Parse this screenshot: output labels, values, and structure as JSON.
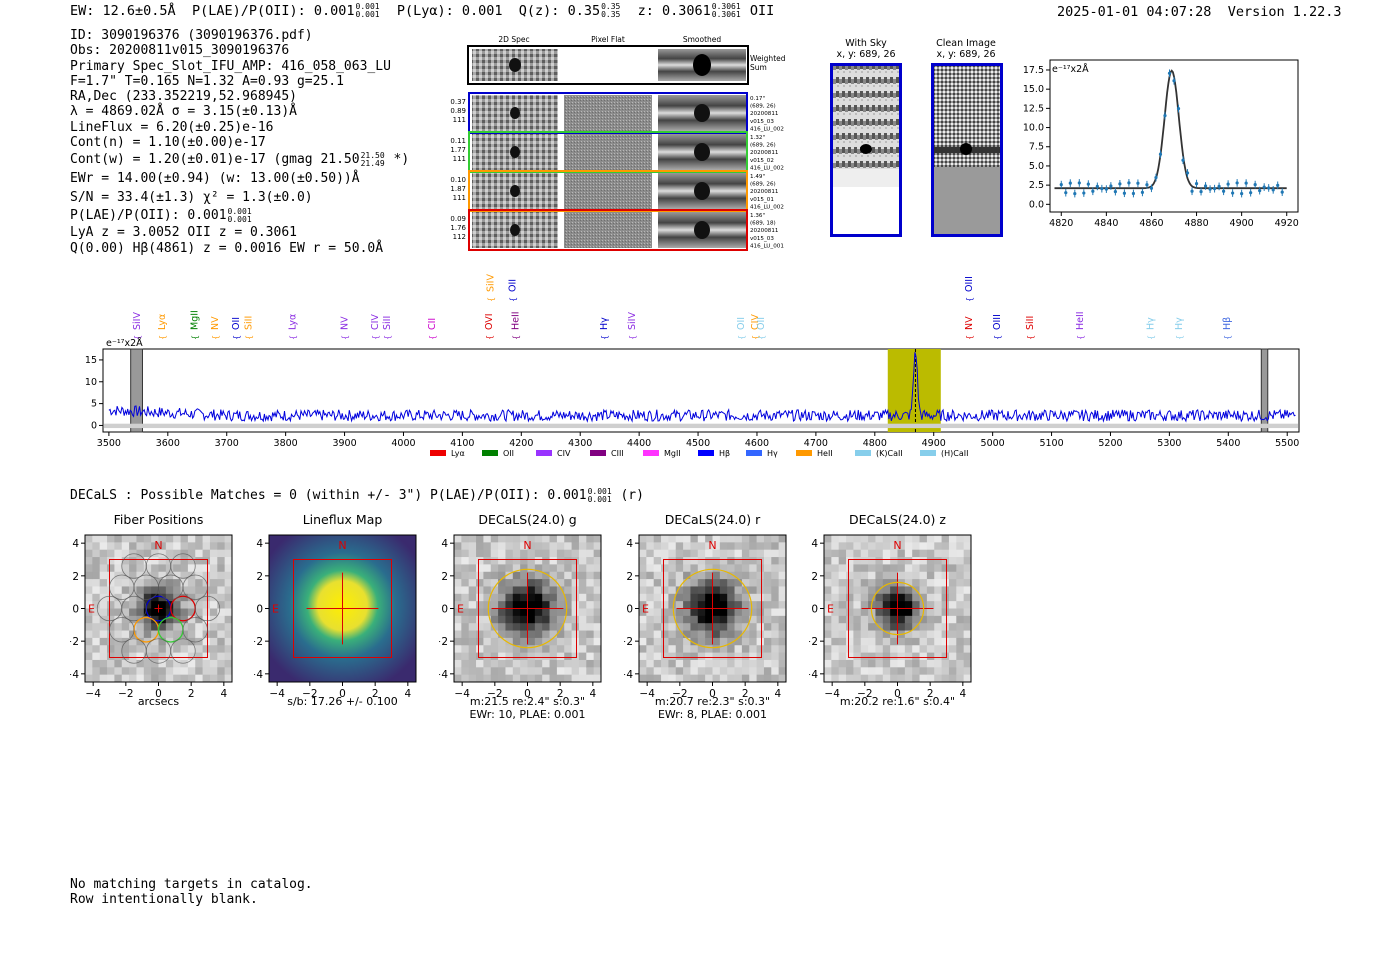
{
  "header": {
    "ew_label": "EW: 12.6±0.5Å",
    "plae_label": "P(LAE)/P(OII): 0.001",
    "plae_up": "0.001",
    "plae_lo": "0.001",
    "plya_label": "P(Lyα): 0.001",
    "qz_label": "Q(z): 0.35",
    "qz_up": "0.35",
    "qz_lo": "0.35",
    "z_label": "z: 0.3061",
    "z_up": "0.3061",
    "z_lo": "0.3061",
    "z_line": "OII",
    "timestamp": "2025-01-01 04:07:28",
    "version": "Version 1.22.3"
  },
  "info": {
    "id": "ID: 3090196376 (3090196376.pdf)",
    "obs": "Obs: 20200811v015_3090196376",
    "primary": "Primary Spec_Slot_IFU_AMP: 416_058_063_LU",
    "params": "F=1.7\"  T=0.165  N=1.32  A=0.93  g=25.1",
    "radec": "RA,Dec (233.352219,52.968945)",
    "lambda": "λ = 4869.02Å  σ = 3.15(±0.13)Å",
    "lineflux": "LineFlux = 6.20(±0.25)e-16",
    "contn": "Cont(n) = 1.10(±0.00)e-17",
    "contw_a": "Cont(w) = 1.20(±0.01)e-17 (gmag 21.50",
    "contw_up": "21.50",
    "contw_lo": "21.49",
    "contw_b": "*)",
    "ewr": "EWr = 14.00(±0.94) (w: 13.00(±0.50))Å",
    "sn": "S/N = 33.4(±1.3)  χ² = 1.3(±0.0)",
    "plae2_a": "P(LAE)/P(OII): 0.001",
    "plae2_up": "0.001",
    "plae2_lo": "0.001",
    "lya": "LyA z = 3.0052  OII z = 0.3061",
    "q": "Q(0.00) Hβ(4861) z = 0.0016  EW r = 50.0Å"
  },
  "cutouts": {
    "col_titles": [
      "2D Spec",
      "Pixel Flat",
      "Smoothed"
    ],
    "weighted": "Weighted",
    "sum": "Sum",
    "rows": [
      {
        "left": [
          "0.37",
          "0.89",
          "111"
        ],
        "right": [
          "0.17\"",
          "(689, 26)",
          "20200811",
          "v015_03",
          "416_LU_002"
        ],
        "color": "#0000cc"
      },
      {
        "left": [
          "0.11",
          "1.77",
          "111"
        ],
        "right": [
          "1.32\"",
          "(689, 26)",
          "20200811",
          "v015_02",
          "416_LU_002"
        ],
        "color": "#33cc33"
      },
      {
        "left": [
          "0.10",
          "1.87",
          "111"
        ],
        "right": [
          "1.49\"",
          "(689, 26)",
          "20200811",
          "v015_01",
          "416_LU_002"
        ],
        "color": "#ff9900"
      },
      {
        "left": [
          "0.09",
          "1.76",
          "112"
        ],
        "right": [
          "1.36\"",
          "(689, 18)",
          "20200811",
          "v015_03",
          "416_LU_001"
        ],
        "color": "#dd0000"
      }
    ],
    "with_sky_title": "With Sky",
    "with_sky_xy": "x, y: 689, 26",
    "clean_title": "Clean Image",
    "clean_xy": "x, y: 689, 26"
  },
  "zoom_plot": {
    "unit": "e⁻¹⁷x2Å",
    "xticks": [
      "4820",
      "4840",
      "4860",
      "4880",
      "4900",
      "4920"
    ],
    "yticks": [
      "0.0",
      "2.5",
      "5.0",
      "7.5",
      "10.0",
      "12.5",
      "15.0",
      "17.5"
    ]
  },
  "full_spectrum": {
    "unit": "e⁻¹⁷x2Å",
    "xticks": [
      "3500",
      "3600",
      "3700",
      "3800",
      "3900",
      "4000",
      "4100",
      "4200",
      "4300",
      "4400",
      "4500",
      "4600",
      "4700",
      "4800",
      "4900",
      "5000",
      "5100",
      "5200",
      "5300",
      "5400",
      "5500"
    ],
    "yticks": [
      "0",
      "5",
      "10",
      "15"
    ],
    "lines": [
      {
        "label": "SiIV",
        "color": "#8a2be2",
        "x": 3548,
        "high": false
      },
      {
        "label": "Lyα",
        "color": "#ff9900",
        "x": 3590,
        "high": false
      },
      {
        "label": "MgII",
        "color": "#008000",
        "x": 3645,
        "high": false
      },
      {
        "label": "NV",
        "color": "#ff9900",
        "x": 3680,
        "high": false
      },
      {
        "label": "OII",
        "color": "#0000cc",
        "x": 3716,
        "high": false
      },
      {
        "label": "SiII",
        "color": "#ff9900",
        "x": 3737,
        "high": false
      },
      {
        "label": "Lyα",
        "color": "#8a2be2",
        "x": 3812,
        "high": false
      },
      {
        "label": "NV",
        "color": "#8a2be2",
        "x": 3900,
        "high": false
      },
      {
        "label": "CIV",
        "color": "#8a2be2",
        "x": 3952,
        "high": false
      },
      {
        "label": "SiII",
        "color": "#8a2be2",
        "x": 3972,
        "high": false
      },
      {
        "label": "CII",
        "color": "#cc00cc",
        "x": 4048,
        "high": false
      },
      {
        "label": "OVI",
        "color": "#dd0000",
        "x": 4145,
        "high": false
      },
      {
        "label": "HeII",
        "color": "#800080",
        "x": 4190,
        "high": false
      },
      {
        "label": "SiIV",
        "color": "#ff9900",
        "x": 4148,
        "high": true
      },
      {
        "label": "OII",
        "color": "#0000cc",
        "x": 4185,
        "high": true
      },
      {
        "label": "Hγ",
        "color": "#0000cc",
        "x": 4340,
        "high": false
      },
      {
        "label": "SiIV",
        "color": "#8a2be2",
        "x": 4388,
        "high": false
      },
      {
        "label": "OII",
        "color": "#87ceeb",
        "x": 4573,
        "high": false
      },
      {
        "label": "CIV",
        "color": "#ff9900",
        "x": 4597,
        "high": false
      },
      {
        "label": "OII",
        "color": "#87ceeb",
        "x": 4607,
        "high": false
      },
      {
        "label": "OIII",
        "color": "#0000cc",
        "x": 4960,
        "high": true
      },
      {
        "label": "NV",
        "color": "#dd0000",
        "x": 4960,
        "high": false
      },
      {
        "label": "OIII",
        "color": "#0000cc",
        "x": 5007,
        "high": false
      },
      {
        "label": "SiII",
        "color": "#dd0000",
        "x": 5063,
        "high": false
      },
      {
        "label": "HeII",
        "color": "#8a2be2",
        "x": 5148,
        "high": false
      },
      {
        "label": "Hγ",
        "color": "#87ceeb",
        "x": 5268,
        "high": false
      },
      {
        "label": "Hγ",
        "color": "#87ceeb",
        "x": 5316,
        "high": false
      },
      {
        "label": "Hβ",
        "color": "#4169e1",
        "x": 5398,
        "high": false
      }
    ],
    "legend": [
      {
        "label": "Lyα",
        "color": "#ee0000"
      },
      {
        "label": "OII",
        "color": "#008000"
      },
      {
        "label": "CIV",
        "color": "#9933ff"
      },
      {
        "label": "CIII",
        "color": "#800080"
      },
      {
        "label": "MgII",
        "color": "#ff33ff"
      },
      {
        "label": "Hβ",
        "color": "#0000ff"
      },
      {
        "label": "Hγ",
        "color": "#3366ff"
      },
      {
        "label": "HeII",
        "color": "#ff9900"
      },
      {
        "label": "(K)CaII",
        "color": "#87ceeb"
      },
      {
        "label": "(H)CaII",
        "color": "#87ceeb"
      }
    ]
  },
  "decals": {
    "line_a": "DECaLS : Possible Matches = 0 (within +/- 3\")  P(LAE)/P(OII): 0.001",
    "line_up": "0.001",
    "line_lo": "0.001",
    "line_b": "(r)",
    "panels": [
      {
        "title": "Fiber Positions",
        "cap1": "arcsecs",
        "cap2": ""
      },
      {
        "title": "Lineflux Map",
        "cap1": "s/b: 17.26 +/- 0.100",
        "cap2": ""
      },
      {
        "title": "DECaLS(24.0) g",
        "cap1": "m:21.5  re:2.4\"  s:0.3\"",
        "cap2": "EWr: 10, PLAE: 0.001"
      },
      {
        "title": "DECaLS(24.0) r",
        "cap1": "m:20.7  re:2.3\"  s:0.3\"",
        "cap2": "EWr: 8, PLAE: 0.001"
      },
      {
        "title": "DECaLS(24.0) z",
        "cap1": "m:20.2  re:1.6\"  s:0.4\"",
        "cap2": ""
      }
    ],
    "xticks": [
      "−4",
      "−2",
      "0",
      "2",
      "4"
    ],
    "yticks": [
      "4",
      "2",
      "0",
      "−2",
      "−4"
    ],
    "n_label": "N",
    "e_label": "E"
  },
  "footer": {
    "line1": "No matching targets in catalog.",
    "line2": "Row intentionally blank."
  }
}
